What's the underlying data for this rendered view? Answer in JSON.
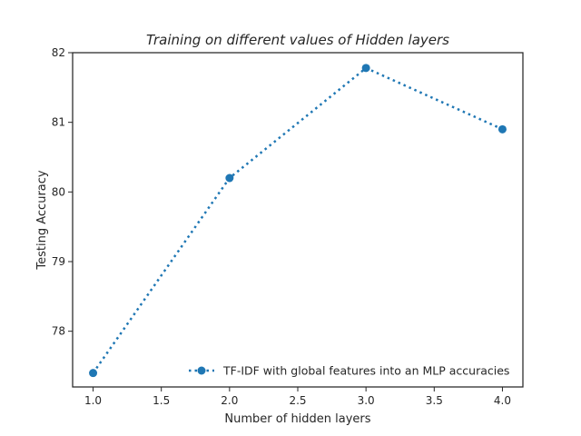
{
  "chart_data": {
    "type": "line",
    "title": "Training on different values of Hidden layers",
    "xlabel": "Number of hidden layers",
    "ylabel": "Testing Accuracy",
    "xlim": [
      0.85,
      4.15
    ],
    "ylim": [
      77.2,
      82.0
    ],
    "xticks": [
      1.0,
      1.5,
      2.0,
      2.5,
      3.0,
      3.5,
      4.0
    ],
    "xtick_labels": [
      "1.0",
      "1.5",
      "2.0",
      "2.5",
      "3.0",
      "3.5",
      "4.0"
    ],
    "yticks": [
      78,
      79,
      80,
      81,
      82
    ],
    "ytick_labels": [
      "78",
      "79",
      "80",
      "81",
      "82"
    ],
    "grid": false,
    "legend_position": "bottom-right",
    "series": [
      {
        "name": "TF-IDF with global features into an MLP accuracies",
        "x": [
          1.0,
          2.0,
          3.0,
          4.0
        ],
        "values": [
          77.4,
          80.2,
          81.78,
          80.9
        ],
        "color": "#1f77b4",
        "line_style": "dotted",
        "marker": "circle"
      }
    ]
  }
}
